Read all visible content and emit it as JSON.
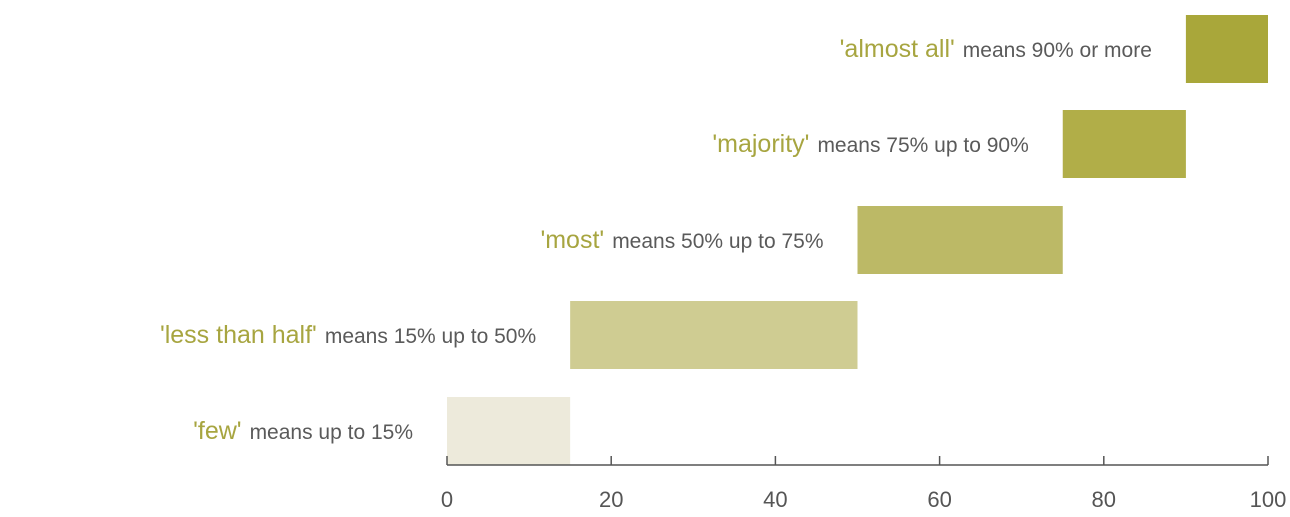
{
  "chart_data": {
    "type": "bar",
    "orientation": "horizontal-range",
    "title": "",
    "xlabel": "",
    "ylabel": "",
    "xlim": [
      0,
      100
    ],
    "x_ticks": [
      "0",
      "20",
      "40",
      "60",
      "80",
      "100"
    ],
    "grid": false,
    "legend": "none",
    "bars": [
      {
        "term": "'few'",
        "description": "means up to 15%",
        "start": 0,
        "end": 15,
        "color": "#edeadb"
      },
      {
        "term": "'less than half'",
        "description": "means 15% up to 50%",
        "start": 15,
        "end": 50,
        "color": "#cfcc92"
      },
      {
        "term": "'most'",
        "description": "means 50% up to 75%",
        "start": 50,
        "end": 75,
        "color": "#bcb966"
      },
      {
        "term": "'majority'",
        "description": "means 75% up to 90%",
        "start": 75,
        "end": 90,
        "color": "#b1ae48"
      },
      {
        "term": "'almost all'",
        "description": "means 90% or more",
        "start": 90,
        "end": 100,
        "color": "#a9a73a"
      }
    ],
    "term_color": "#a7a540",
    "axis_color": "#555555"
  }
}
